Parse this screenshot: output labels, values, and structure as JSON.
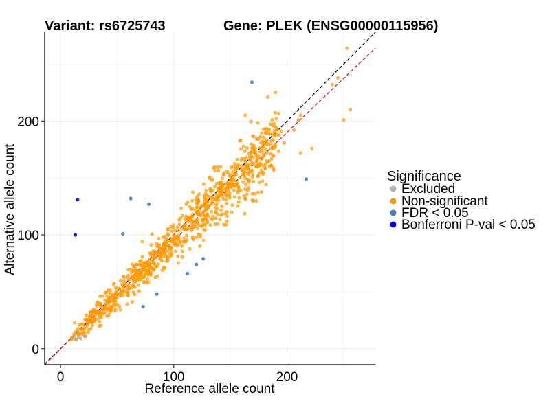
{
  "chart_data": {
    "type": "scatter",
    "title_left": "Variant: rs6725743",
    "title_right": "Gene: PLEK (ENSG00000115956)",
    "xlabel": "Reference allele count",
    "ylabel": "Alternative allele count",
    "xlim": [
      -14,
      278
    ],
    "ylim": [
      -14,
      278
    ],
    "xticks": [
      0,
      100,
      200
    ],
    "yticks": [
      0,
      100,
      200
    ],
    "grid": true,
    "reference_lines": [
      {
        "name": "identity",
        "slope": 1.0,
        "color": "#000000",
        "style": "dashed"
      },
      {
        "name": "fitted",
        "slope": 0.95,
        "color": "#e41a1c",
        "style": "dashed"
      }
    ],
    "legend": {
      "title": "Significance",
      "placement": "right",
      "items": [
        {
          "key": "excluded",
          "label": "Excluded",
          "color": "#b3b3b3"
        },
        {
          "key": "nonsig",
          "label": "Non-significant",
          "color": "#ff9900"
        },
        {
          "key": "fdr",
          "label": "FDR < 0.05",
          "color": "#4a7ebb"
        },
        {
          "key": "bonf",
          "label": "Bonferroni P-val < 0.05",
          "color": "#0000ee"
        }
      ]
    },
    "series": [
      {
        "name": "Excluded",
        "key": "excluded",
        "points": [
          [
            10,
            9
          ],
          [
            12,
            11
          ],
          [
            14,
            8
          ],
          [
            16,
            10
          ],
          [
            18,
            9
          ],
          [
            20,
            12
          ],
          [
            15,
            13
          ],
          [
            22,
            11
          ]
        ]
      },
      {
        "name": "FDR < 0.05",
        "key": "fdr",
        "points": [
          [
            169,
            234
          ],
          [
            62,
            132
          ],
          [
            78,
            127
          ],
          [
            55,
            101
          ],
          [
            217,
            149
          ],
          [
            85,
            48
          ],
          [
            73,
            37
          ],
          [
            112,
            66
          ],
          [
            120,
            74
          ],
          [
            126,
            79
          ]
        ]
      },
      {
        "name": "Bonferroni P-val < 0.05",
        "key": "bonf",
        "points": [
          [
            15,
            131
          ],
          [
            13,
            100
          ]
        ]
      },
      {
        "name": "Non-significant",
        "key": "nonsig",
        "count_generated": 900,
        "points": [
          [
            253,
            264
          ],
          [
            256,
            210
          ],
          [
            250,
            201
          ],
          [
            240,
            232
          ],
          [
            245,
            238
          ],
          [
            212,
            205
          ],
          [
            210,
            201
          ],
          [
            206,
            192
          ],
          [
            222,
            176
          ],
          [
            212,
            172
          ],
          [
            163,
            205
          ]
        ]
      }
    ]
  }
}
